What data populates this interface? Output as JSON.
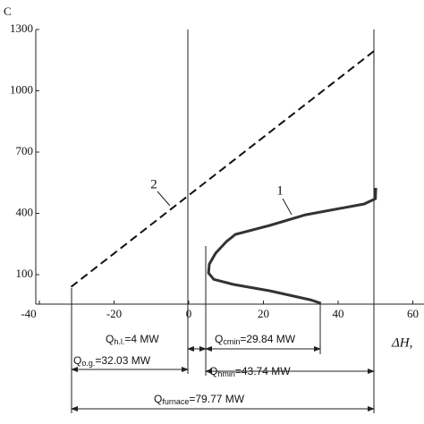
{
  "chart_data": {
    "type": "line",
    "y_label": "C",
    "x_label": "ΔH,",
    "xlim": [
      -40,
      63
    ],
    "ylim": [
      -40,
      1300
    ],
    "xticks": [
      -40,
      -20,
      0,
      20,
      40,
      60
    ],
    "yticks": [
      100,
      400,
      700,
      1000,
      1300
    ],
    "series": [
      {
        "name": "1",
        "color": "#333333",
        "dash": false,
        "x": [
          50.1,
          50,
          47,
          31.3,
          21.7,
          12.5,
          10.1,
          7.2,
          5.5,
          5.3,
          6.7,
          12,
          21.7,
          32.5,
          35.4
        ],
        "y": [
          525,
          472,
          446,
          393,
          341,
          297,
          262,
          205,
          152,
          108,
          77,
          52,
          21,
          -23,
          -40
        ]
      },
      {
        "name": "2",
        "color": "#111111",
        "dash": true,
        "x": [
          -31.5,
          50
        ],
        "y": [
          40,
          1200
        ]
      }
    ],
    "annotations": [
      {
        "symbol": "Q",
        "subscript": "h.l.",
        "text": "=4 MW"
      },
      {
        "symbol": "Q",
        "subscript": "cmin",
        "text": "=29.84 MW"
      },
      {
        "symbol": "Q",
        "subscript": "o.g.",
        "text": "=32.03 MW"
      },
      {
        "symbol": "Q",
        "subscript": "hmin",
        "text": "=43.74 MW"
      },
      {
        "symbol": "Q",
        "subscript": "furnace",
        "text": "=79.77 MW"
      }
    ]
  }
}
